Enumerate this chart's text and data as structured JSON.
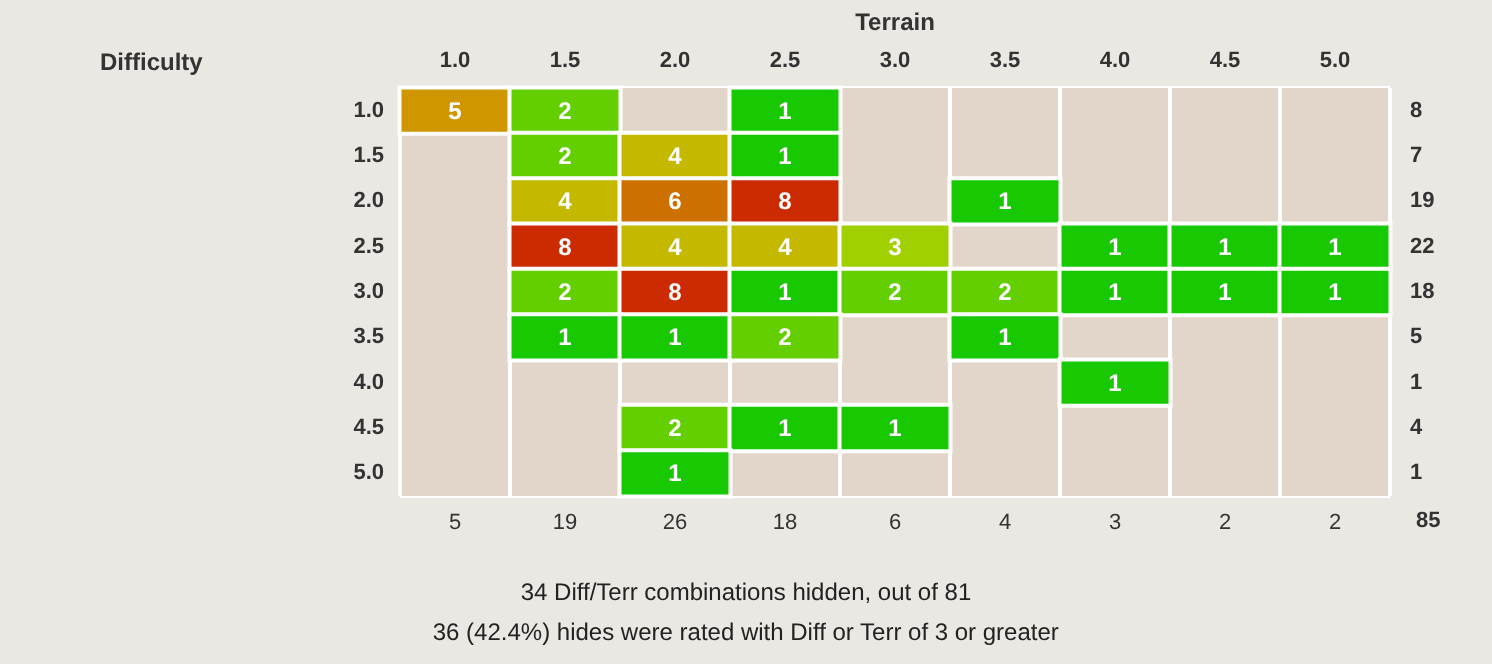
{
  "chart_data": {
    "type": "heatmap",
    "xlabel": "Terrain",
    "categories": [
      "1.0",
      "1.5",
      "2.0",
      "2.5",
      "3.0",
      "3.5",
      "4.0",
      "4.5",
      "5.0"
    ],
    "y_categories": [
      "1.0",
      "1.5",
      "2.0",
      "2.5",
      "3.0",
      "3.5",
      "4.0",
      "4.5",
      "5.0"
    ],
    "y2_categories": [
      "8",
      "7",
      "19",
      "22",
      "18",
      "5",
      "1",
      "4",
      "1"
    ],
    "cells": [
      [
        5,
        2,
        null,
        1,
        null,
        null,
        null,
        null,
        null
      ],
      [
        null,
        2,
        4,
        1,
        null,
        null,
        null,
        null,
        null
      ],
      [
        null,
        4,
        6,
        8,
        null,
        1,
        null,
        null,
        null
      ],
      [
        null,
        8,
        4,
        4,
        3,
        null,
        1,
        1,
        1
      ],
      [
        null,
        2,
        8,
        1,
        2,
        2,
        1,
        1,
        1
      ],
      [
        null,
        1,
        1,
        2,
        null,
        1,
        null,
        null,
        null
      ],
      [
        null,
        null,
        null,
        null,
        null,
        null,
        1,
        null,
        null
      ],
      [
        null,
        null,
        2,
        1,
        1,
        null,
        null,
        null,
        null
      ],
      [
        null,
        null,
        1,
        null,
        null,
        null,
        null,
        null,
        null
      ]
    ],
    "colors": [
      "#18c800",
      "#6fd000",
      "#b4d000",
      "#d1a800",
      "#cc7d00",
      "#cc5200",
      "#cc2a00"
    ],
    "data_labels": true,
    "annotations": [
      "Difficulty",
      "5",
      "19",
      "26",
      "18",
      "6",
      "4",
      "3",
      "2",
      "2",
      "85",
      "34 Diff/Terr combinations hidden, out of 81",
      "36 (42.4%) hides were rated with Diff or Terr of 3 or greater"
    ]
  }
}
